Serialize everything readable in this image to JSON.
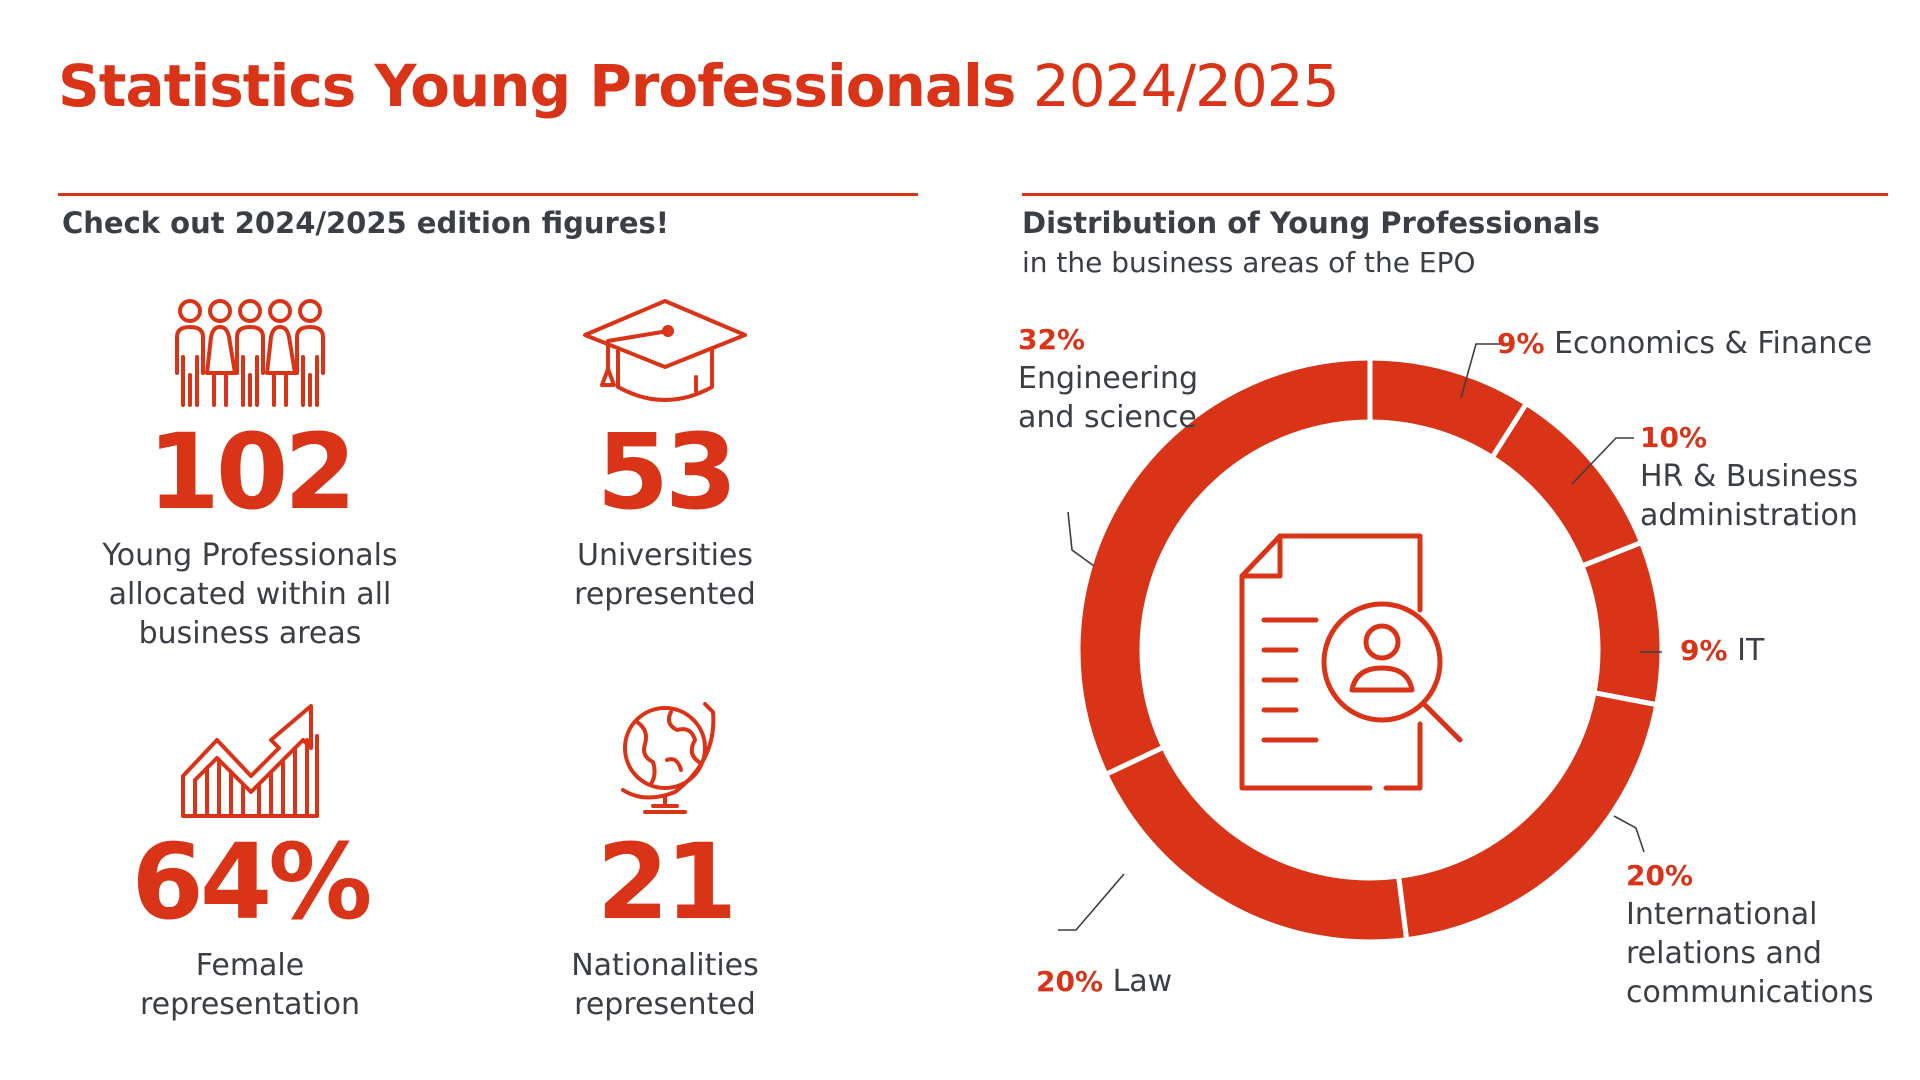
{
  "header": {
    "title_bold": "Statistics Young Professionals",
    "title_light": "2024/2025"
  },
  "left_section": {
    "heading": "Check out 2024/2025 edition figures!",
    "stats": [
      {
        "value": "102",
        "label": [
          "Young Professionals",
          "allocated within all",
          "business areas"
        ],
        "icon": "people-group-icon"
      },
      {
        "value": "53",
        "label": [
          "Universities",
          "represented"
        ],
        "icon": "graduation-cap-icon"
      },
      {
        "value": "64%",
        "label": [
          "Female",
          "representation"
        ],
        "icon": "growth-chart-icon"
      },
      {
        "value": "21",
        "label": [
          "Nationalities",
          "represented"
        ],
        "icon": "globe-icon"
      }
    ]
  },
  "right_section": {
    "heading": "Distribution of Young Professionals",
    "subheading": "in the business areas of the EPO",
    "center_icon": "document-search-person-icon"
  },
  "colors": {
    "accent": "#d93418",
    "text": "#3a3e45"
  },
  "chart_data": {
    "type": "pie",
    "donut": true,
    "slices": [
      {
        "label": "Economics & Finance",
        "pct_text": "9%",
        "value": 9
      },
      {
        "label": "HR & Business administration",
        "pct_text": "10%",
        "value": 10
      },
      {
        "label": "IT",
        "pct_text": "9%",
        "value": 9
      },
      {
        "label": "International relations and communications",
        "pct_text": "20%",
        "value": 20
      },
      {
        "label": "Law",
        "pct_text": "20%",
        "value": 20
      },
      {
        "label": "Engineering and science",
        "pct_text": "32%",
        "value": 32
      }
    ],
    "start": "top, clockwise"
  }
}
